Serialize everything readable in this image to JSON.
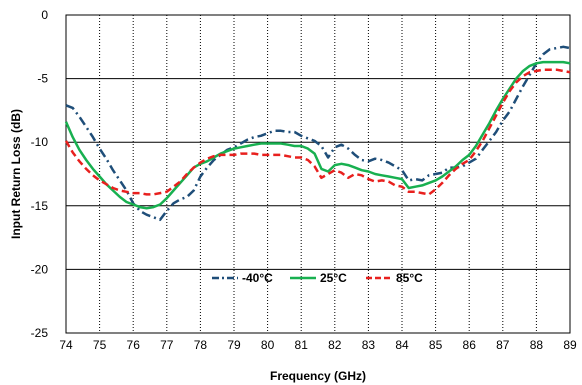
{
  "chart_data": {
    "type": "line",
    "xlabel": "Frequency (GHz)",
    "ylabel": "Input Return Loss (dB)",
    "xlim": [
      74,
      89
    ],
    "ylim": [
      -25,
      0
    ],
    "xticks": [
      "74",
      "75",
      "76",
      "77",
      "78",
      "79",
      "80",
      "81",
      "82",
      "83",
      "84",
      "85",
      "86",
      "87",
      "88",
      "89"
    ],
    "yticks": [
      "0",
      "-5",
      "-10",
      "-15",
      "-20",
      "-25"
    ],
    "grid": {
      "vertical": "dotted",
      "horizontal": "solid"
    },
    "legend_position": "bottom-center",
    "series": [
      {
        "name": "-40°C",
        "color": "#1f4e79",
        "style": "dash-dot",
        "x": [
          74.0,
          74.2,
          74.4,
          74.6,
          74.8,
          75.0,
          75.2,
          75.4,
          75.6,
          75.8,
          76.0,
          76.2,
          76.4,
          76.6,
          76.8,
          77.0,
          77.2,
          77.4,
          77.6,
          77.8,
          78.0,
          78.2,
          78.4,
          78.6,
          78.8,
          79.0,
          79.2,
          79.4,
          79.6,
          79.8,
          80.0,
          80.2,
          80.4,
          80.6,
          80.8,
          81.0,
          81.2,
          81.4,
          81.6,
          81.8,
          82.0,
          82.2,
          82.4,
          82.6,
          82.8,
          83.0,
          83.2,
          83.4,
          83.6,
          83.8,
          84.0,
          84.2,
          84.4,
          84.6,
          84.8,
          85.0,
          85.2,
          85.4,
          85.6,
          85.8,
          86.0,
          86.2,
          86.4,
          86.6,
          86.8,
          87.0,
          87.2,
          87.4,
          87.6,
          87.8,
          88.0,
          88.2,
          88.4,
          88.6,
          88.8,
          89.0
        ],
        "y": [
          -7.1,
          -7.3,
          -8.0,
          -8.8,
          -9.6,
          -10.5,
          -11.3,
          -12.2,
          -13.0,
          -13.8,
          -14.8,
          -15.4,
          -15.7,
          -15.9,
          -16.1,
          -15.4,
          -14.8,
          -14.5,
          -14.3,
          -13.8,
          -12.7,
          -12.0,
          -11.4,
          -11.0,
          -10.6,
          -10.4,
          -10.1,
          -9.8,
          -9.6,
          -9.5,
          -9.3,
          -9.1,
          -9.1,
          -9.2,
          -9.2,
          -9.5,
          -9.7,
          -9.9,
          -10.3,
          -11.2,
          -10.4,
          -10.2,
          -10.5,
          -11.0,
          -11.4,
          -11.5,
          -11.3,
          -11.4,
          -11.6,
          -11.9,
          -12.2,
          -13.0,
          -12.9,
          -13.0,
          -12.6,
          -12.5,
          -12.4,
          -12.0,
          -12.0,
          -11.9,
          -11.6,
          -11.3,
          -10.6,
          -9.9,
          -9.2,
          -8.3,
          -7.6,
          -6.6,
          -5.6,
          -4.7,
          -3.8,
          -3.1,
          -2.7,
          -2.6,
          -2.5,
          -2.6
        ]
      },
      {
        "name": "25°C",
        "color": "#18b050",
        "style": "solid",
        "x": [
          74.0,
          74.2,
          74.4,
          74.6,
          74.8,
          75.0,
          75.2,
          75.4,
          75.6,
          75.8,
          76.0,
          76.2,
          76.4,
          76.6,
          76.8,
          77.0,
          77.2,
          77.4,
          77.6,
          77.8,
          78.0,
          78.2,
          78.4,
          78.6,
          78.8,
          79.0,
          79.2,
          79.4,
          79.6,
          79.8,
          80.0,
          80.2,
          80.4,
          80.6,
          80.8,
          81.0,
          81.2,
          81.4,
          81.6,
          81.8,
          82.0,
          82.2,
          82.4,
          82.6,
          82.8,
          83.0,
          83.2,
          83.4,
          83.6,
          83.8,
          84.0,
          84.2,
          84.4,
          84.6,
          84.8,
          85.0,
          85.2,
          85.4,
          85.6,
          85.8,
          86.0,
          86.2,
          86.4,
          86.6,
          86.8,
          87.0,
          87.2,
          87.4,
          87.6,
          87.8,
          88.0,
          88.2,
          88.4,
          88.6,
          88.8,
          89.0
        ],
        "y": [
          -8.4,
          -9.6,
          -10.6,
          -11.4,
          -12.1,
          -12.7,
          -13.3,
          -13.8,
          -14.3,
          -14.7,
          -14.9,
          -15.1,
          -15.2,
          -15.1,
          -14.9,
          -14.4,
          -13.8,
          -13.2,
          -12.6,
          -12.0,
          -11.7,
          -11.5,
          -11.2,
          -10.9,
          -10.7,
          -10.5,
          -10.4,
          -10.3,
          -10.2,
          -10.1,
          -10.1,
          -10.1,
          -10.1,
          -10.2,
          -10.3,
          -10.3,
          -10.5,
          -10.9,
          -12.1,
          -12.3,
          -11.8,
          -11.7,
          -11.8,
          -12.0,
          -12.2,
          -12.3,
          -12.5,
          -12.6,
          -12.7,
          -12.8,
          -12.9,
          -13.6,
          -13.5,
          -13.4,
          -13.2,
          -13.0,
          -12.7,
          -12.3,
          -11.9,
          -11.4,
          -11.0,
          -10.3,
          -9.4,
          -8.5,
          -7.5,
          -6.6,
          -5.8,
          -5.0,
          -4.4,
          -4.0,
          -3.8,
          -3.7,
          -3.7,
          -3.7,
          -3.7,
          -3.8
        ]
      },
      {
        "name": "85°C",
        "color": "#e8201e",
        "style": "dash",
        "x": [
          74.0,
          74.2,
          74.4,
          74.6,
          74.8,
          75.0,
          75.2,
          75.4,
          75.6,
          75.8,
          76.0,
          76.2,
          76.4,
          76.6,
          76.8,
          77.0,
          77.2,
          77.4,
          77.6,
          77.8,
          78.0,
          78.2,
          78.4,
          78.6,
          78.8,
          79.0,
          79.2,
          79.4,
          79.6,
          79.8,
          80.0,
          80.2,
          80.4,
          80.6,
          80.8,
          81.0,
          81.2,
          81.4,
          81.6,
          81.8,
          82.0,
          82.2,
          82.4,
          82.6,
          82.8,
          83.0,
          83.2,
          83.4,
          83.6,
          83.8,
          84.0,
          84.2,
          84.4,
          84.6,
          84.8,
          85.0,
          85.2,
          85.4,
          85.6,
          85.8,
          86.0,
          86.2,
          86.4,
          86.6,
          86.8,
          87.0,
          87.2,
          87.4,
          87.6,
          87.8,
          88.0,
          88.2,
          88.4,
          88.6,
          88.8,
          89.0
        ],
        "y": [
          -9.9,
          -10.8,
          -11.5,
          -12.1,
          -12.6,
          -13.0,
          -13.3,
          -13.6,
          -13.8,
          -13.9,
          -14.0,
          -14.0,
          -14.1,
          -14.1,
          -14.0,
          -13.9,
          -13.5,
          -13.1,
          -12.5,
          -12.0,
          -11.6,
          -11.3,
          -11.1,
          -11.0,
          -11.0,
          -11.0,
          -10.9,
          -10.9,
          -10.9,
          -11.0,
          -11.0,
          -11.0,
          -11.0,
          -11.1,
          -11.2,
          -11.2,
          -11.4,
          -11.9,
          -12.8,
          -12.5,
          -12.2,
          -12.4,
          -12.8,
          -12.5,
          -12.6,
          -12.9,
          -13.1,
          -13.0,
          -13.1,
          -13.4,
          -13.5,
          -13.9,
          -13.9,
          -14.0,
          -14.1,
          -13.7,
          -13.2,
          -12.6,
          -12.1,
          -11.7,
          -11.4,
          -10.7,
          -9.9,
          -8.9,
          -7.9,
          -6.9,
          -6.0,
          -5.3,
          -4.8,
          -4.5,
          -4.4,
          -4.3,
          -4.3,
          -4.3,
          -4.4,
          -4.5
        ]
      }
    ]
  }
}
